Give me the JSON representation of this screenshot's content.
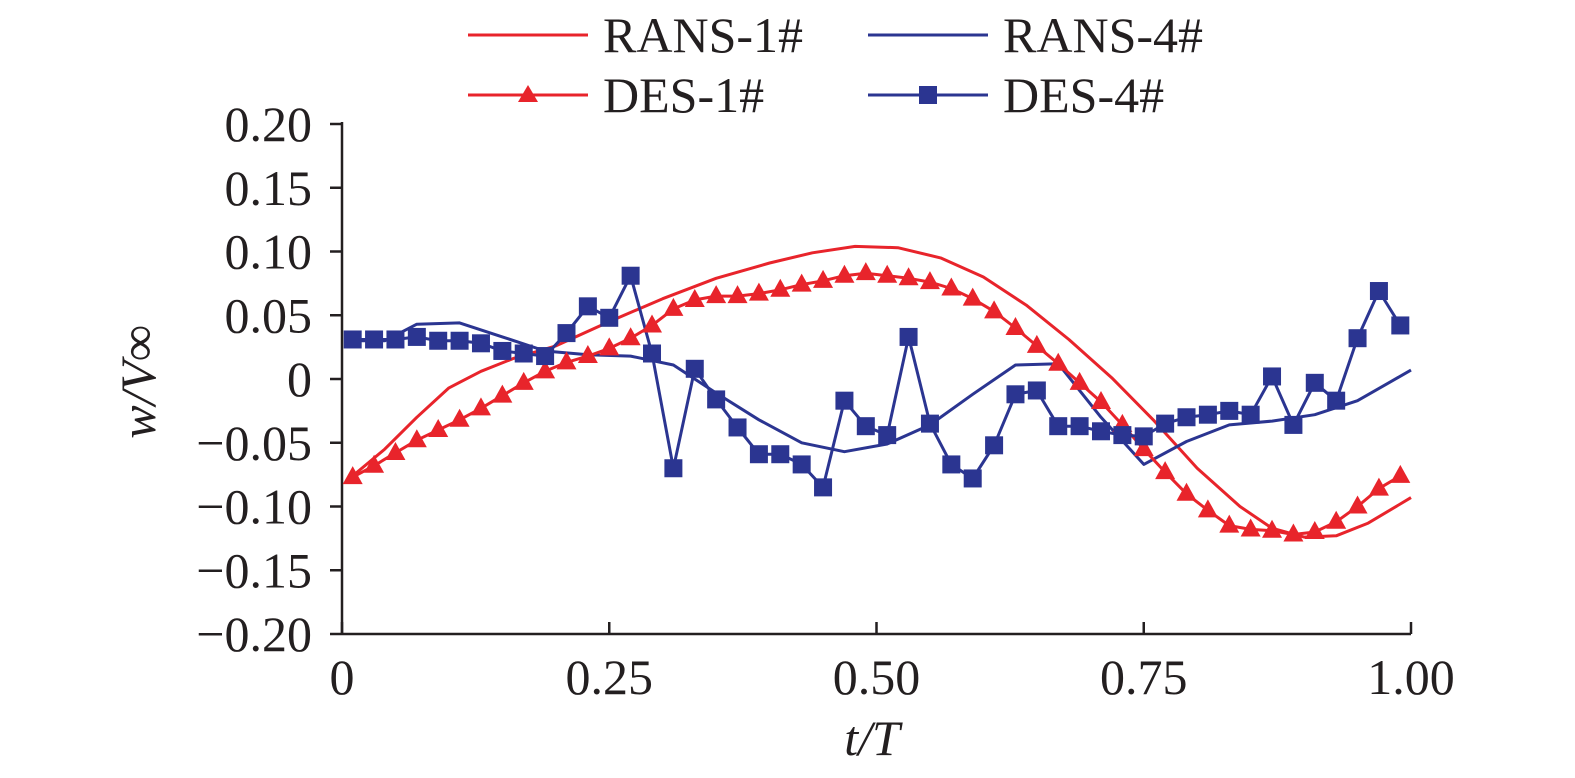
{
  "chart_data": {
    "type": "line",
    "xlabel": "t/T",
    "ylabel": "w/V∞",
    "xlim": [
      0,
      1
    ],
    "ylim": [
      -0.2,
      0.2
    ],
    "x_ticks": [
      0,
      0.25,
      0.5,
      0.75,
      1.0
    ],
    "x_tick_labels": [
      "0",
      "0.25",
      "0.50",
      "0.75",
      "1.00"
    ],
    "y_ticks": [
      0.2,
      0.15,
      0.1,
      0.05,
      0,
      -0.05,
      -0.1,
      -0.15,
      -0.2
    ],
    "y_tick_labels": [
      "0.20",
      "0.15",
      "0.10",
      "0.05",
      "0",
      "−0.05",
      "−0.10",
      "−0.15",
      "−0.20"
    ],
    "legend_position": "top",
    "grid": false,
    "series": [
      {
        "name": "RANS-1#",
        "color": "#e8242b",
        "marker": "none",
        "x": [
          0.01,
          0.04,
          0.07,
          0.1,
          0.13,
          0.16,
          0.2,
          0.25,
          0.3,
          0.35,
          0.4,
          0.44,
          0.48,
          0.52,
          0.56,
          0.6,
          0.64,
          0.68,
          0.72,
          0.76,
          0.8,
          0.84,
          0.87,
          0.9,
          0.93,
          0.96,
          1.0
        ],
        "y": [
          -0.076,
          -0.055,
          -0.03,
          -0.007,
          0.006,
          0.016,
          0.026,
          0.045,
          0.063,
          0.079,
          0.091,
          0.099,
          0.104,
          0.103,
          0.095,
          0.08,
          0.058,
          0.031,
          0.001,
          -0.033,
          -0.07,
          -0.1,
          -0.117,
          -0.124,
          -0.123,
          -0.113,
          -0.093
        ]
      },
      {
        "name": "DES-1#",
        "color": "#e8242b",
        "marker": "triangle",
        "x": [
          0.01,
          0.03,
          0.05,
          0.07,
          0.09,
          0.11,
          0.13,
          0.15,
          0.17,
          0.19,
          0.21,
          0.23,
          0.25,
          0.27,
          0.29,
          0.31,
          0.33,
          0.35,
          0.37,
          0.39,
          0.41,
          0.43,
          0.45,
          0.47,
          0.49,
          0.51,
          0.53,
          0.55,
          0.57,
          0.59,
          0.61,
          0.63,
          0.65,
          0.67,
          0.69,
          0.71,
          0.73,
          0.75,
          0.77,
          0.79,
          0.81,
          0.83,
          0.85,
          0.87,
          0.89,
          0.91,
          0.93,
          0.95,
          0.97,
          0.99
        ],
        "y": [
          -0.077,
          -0.068,
          -0.058,
          -0.048,
          -0.04,
          -0.032,
          -0.023,
          -0.013,
          -0.003,
          0.006,
          0.013,
          0.018,
          0.024,
          0.032,
          0.042,
          0.055,
          0.062,
          0.065,
          0.065,
          0.067,
          0.07,
          0.074,
          0.077,
          0.081,
          0.083,
          0.081,
          0.079,
          0.076,
          0.071,
          0.063,
          0.053,
          0.04,
          0.026,
          0.012,
          -0.003,
          -0.018,
          -0.036,
          -0.055,
          -0.073,
          -0.09,
          -0.103,
          -0.115,
          -0.118,
          -0.119,
          -0.122,
          -0.12,
          -0.112,
          -0.1,
          -0.086,
          -0.076
        ]
      },
      {
        "name": "RANS-4#",
        "color": "#2b3591",
        "marker": "none",
        "x": [
          0.01,
          0.04,
          0.07,
          0.11,
          0.15,
          0.19,
          0.23,
          0.27,
          0.31,
          0.35,
          0.39,
          0.43,
          0.47,
          0.51,
          0.55,
          0.59,
          0.63,
          0.67,
          0.71,
          0.75,
          0.79,
          0.83,
          0.87,
          0.91,
          0.95,
          1.0
        ],
        "y": [
          0.03,
          0.03,
          0.043,
          0.044,
          0.033,
          0.022,
          0.019,
          0.018,
          0.011,
          -0.011,
          -0.032,
          -0.05,
          -0.057,
          -0.051,
          -0.036,
          -0.012,
          0.011,
          0.012,
          -0.03,
          -0.067,
          -0.049,
          -0.036,
          -0.033,
          -0.028,
          -0.017,
          0.007
        ]
      },
      {
        "name": "DES-4#",
        "color": "#2b3591",
        "marker": "square",
        "x": [
          0.01,
          0.03,
          0.05,
          0.07,
          0.09,
          0.11,
          0.13,
          0.15,
          0.17,
          0.19,
          0.21,
          0.23,
          0.25,
          0.27,
          0.29,
          0.31,
          0.33,
          0.35,
          0.37,
          0.39,
          0.41,
          0.43,
          0.45,
          0.47,
          0.49,
          0.51,
          0.53,
          0.55,
          0.57,
          0.59,
          0.61,
          0.63,
          0.65,
          0.67,
          0.69,
          0.71,
          0.73,
          0.75,
          0.77,
          0.79,
          0.81,
          0.83,
          0.85,
          0.87,
          0.89,
          0.91,
          0.93,
          0.95,
          0.97,
          0.99
        ],
        "y": [
          0.031,
          0.031,
          0.031,
          0.033,
          0.03,
          0.03,
          0.028,
          0.022,
          0.02,
          0.018,
          0.036,
          0.057,
          0.048,
          0.081,
          0.02,
          -0.07,
          0.008,
          -0.016,
          -0.038,
          -0.059,
          -0.059,
          -0.067,
          -0.085,
          -0.017,
          -0.037,
          -0.044,
          0.033,
          -0.035,
          -0.067,
          -0.078,
          -0.052,
          -0.012,
          -0.009,
          -0.037,
          -0.037,
          -0.041,
          -0.044,
          -0.045,
          -0.035,
          -0.03,
          -0.028,
          -0.025,
          -0.028,
          0.002,
          -0.036,
          -0.003,
          -0.017,
          0.032,
          0.069,
          0.042
        ]
      }
    ]
  }
}
